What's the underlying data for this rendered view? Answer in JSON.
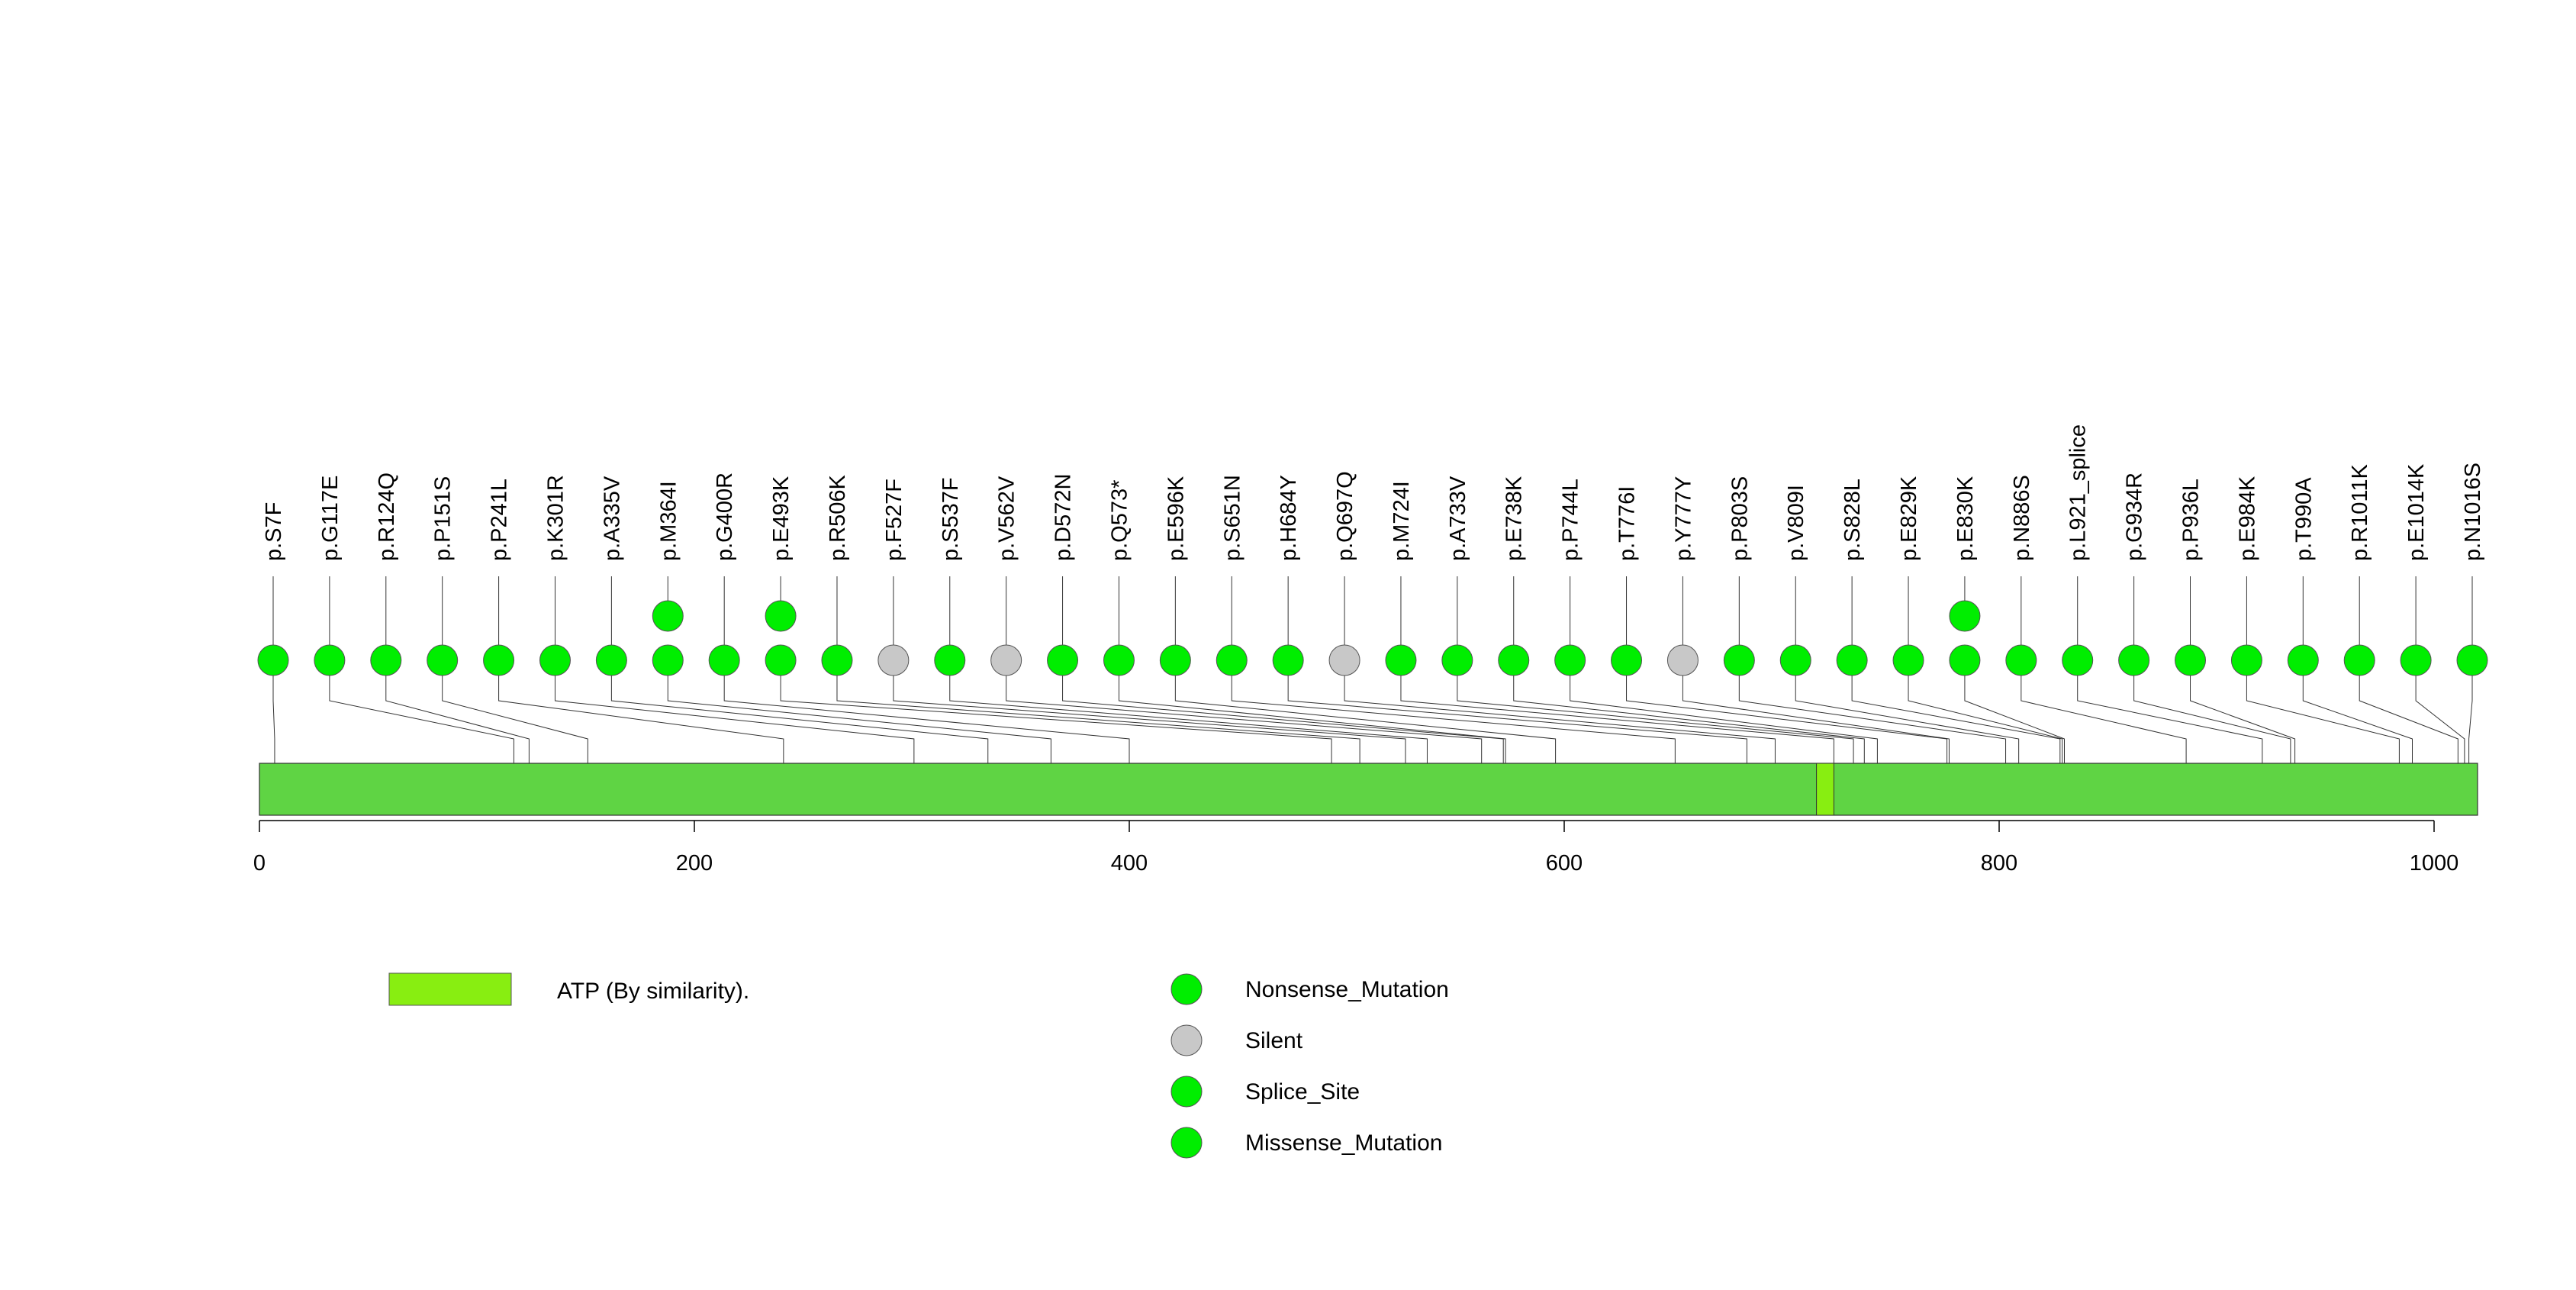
{
  "chart_data": {
    "type": "lollipop",
    "protein_length": 1020,
    "x_ticks": [
      "0",
      "200",
      "400",
      "600",
      "800",
      "1000"
    ],
    "x_tick_values": [
      0,
      200,
      400,
      600,
      800,
      1000
    ],
    "domains": [
      {
        "label": "ATP (By similarity).",
        "start": 716,
        "end": 724,
        "color": "#88ee11"
      }
    ],
    "mutation_types": [
      {
        "name": "Nonsense_Mutation",
        "color": "#00ee00"
      },
      {
        "name": "Silent",
        "color": "#c8c8c8"
      },
      {
        "name": "Splice_Site",
        "color": "#00ee00"
      },
      {
        "name": "Missense_Mutation",
        "color": "#00ee00"
      }
    ],
    "mutations": [
      {
        "label": "p.S7F",
        "pos": 7,
        "count": 1,
        "type": "Missense_Mutation"
      },
      {
        "label": "p.G117E",
        "pos": 117,
        "count": 1,
        "type": "Missense_Mutation"
      },
      {
        "label": "p.R124Q",
        "pos": 124,
        "count": 1,
        "type": "Missense_Mutation"
      },
      {
        "label": "p.P151S",
        "pos": 151,
        "count": 1,
        "type": "Missense_Mutation"
      },
      {
        "label": "p.P241L",
        "pos": 241,
        "count": 1,
        "type": "Missense_Mutation"
      },
      {
        "label": "p.K301R",
        "pos": 301,
        "count": 1,
        "type": "Missense_Mutation"
      },
      {
        "label": "p.A335V",
        "pos": 335,
        "count": 1,
        "type": "Missense_Mutation"
      },
      {
        "label": "p.M364I",
        "pos": 364,
        "count": 2,
        "type": "Missense_Mutation"
      },
      {
        "label": "p.G400R",
        "pos": 400,
        "count": 1,
        "type": "Missense_Mutation"
      },
      {
        "label": "p.E493K",
        "pos": 493,
        "count": 2,
        "type": "Missense_Mutation"
      },
      {
        "label": "p.R506K",
        "pos": 506,
        "count": 1,
        "type": "Missense_Mutation"
      },
      {
        "label": "p.F527F",
        "pos": 527,
        "count": 1,
        "type": "Silent"
      },
      {
        "label": "p.S537F",
        "pos": 537,
        "count": 1,
        "type": "Missense_Mutation"
      },
      {
        "label": "p.V562V",
        "pos": 562,
        "count": 1,
        "type": "Silent"
      },
      {
        "label": "p.D572N",
        "pos": 572,
        "count": 1,
        "type": "Missense_Mutation"
      },
      {
        "label": "p.Q573*",
        "pos": 573,
        "count": 1,
        "type": "Nonsense_Mutation"
      },
      {
        "label": "p.E596K",
        "pos": 596,
        "count": 1,
        "type": "Missense_Mutation"
      },
      {
        "label": "p.S651N",
        "pos": 651,
        "count": 1,
        "type": "Missense_Mutation"
      },
      {
        "label": "p.H684Y",
        "pos": 684,
        "count": 1,
        "type": "Missense_Mutation"
      },
      {
        "label": "p.Q697Q",
        "pos": 697,
        "count": 1,
        "type": "Silent"
      },
      {
        "label": "p.M724I",
        "pos": 724,
        "count": 1,
        "type": "Missense_Mutation"
      },
      {
        "label": "p.A733V",
        "pos": 733,
        "count": 1,
        "type": "Missense_Mutation"
      },
      {
        "label": "p.E738K",
        "pos": 738,
        "count": 1,
        "type": "Missense_Mutation"
      },
      {
        "label": "p.P744L",
        "pos": 744,
        "count": 1,
        "type": "Missense_Mutation"
      },
      {
        "label": "p.T776I",
        "pos": 776,
        "count": 1,
        "type": "Missense_Mutation"
      },
      {
        "label": "p.Y777Y",
        "pos": 777,
        "count": 1,
        "type": "Silent"
      },
      {
        "label": "p.P803S",
        "pos": 803,
        "count": 1,
        "type": "Missense_Mutation"
      },
      {
        "label": "p.V809I",
        "pos": 809,
        "count": 1,
        "type": "Missense_Mutation"
      },
      {
        "label": "p.S828L",
        "pos": 828,
        "count": 1,
        "type": "Missense_Mutation"
      },
      {
        "label": "p.E829K",
        "pos": 829,
        "count": 1,
        "type": "Missense_Mutation"
      },
      {
        "label": "p.E830K",
        "pos": 830,
        "count": 2,
        "type": "Missense_Mutation"
      },
      {
        "label": "p.N886S",
        "pos": 886,
        "count": 1,
        "type": "Missense_Mutation"
      },
      {
        "label": "p.L921_splice",
        "pos": 921,
        "count": 1,
        "type": "Splice_Site"
      },
      {
        "label": "p.G934R",
        "pos": 934,
        "count": 1,
        "type": "Missense_Mutation"
      },
      {
        "label": "p.P936L",
        "pos": 936,
        "count": 1,
        "type": "Missense_Mutation"
      },
      {
        "label": "p.E984K",
        "pos": 984,
        "count": 1,
        "type": "Missense_Mutation"
      },
      {
        "label": "p.T990A",
        "pos": 990,
        "count": 1,
        "type": "Missense_Mutation"
      },
      {
        "label": "p.R1011K",
        "pos": 1011,
        "count": 1,
        "type": "Missense_Mutation"
      },
      {
        "label": "p.E1014K",
        "pos": 1014,
        "count": 1,
        "type": "Missense_Mutation"
      },
      {
        "label": "p.N1016S",
        "pos": 1016,
        "count": 1,
        "type": "Missense_Mutation"
      }
    ]
  }
}
